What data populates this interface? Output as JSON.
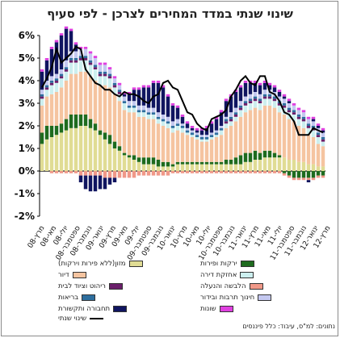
{
  "title": "שינוי שנתי במדד המחירים לצרכן - לפי סעיף",
  "source": "נתונים: למ\"ס, עיבוד: כלל פיננסים",
  "chart_data": {
    "type": "bar",
    "stacked": true,
    "ylim": [
      -2,
      6
    ],
    "yticks": [
      "-2%",
      "-1%",
      "0%",
      "1%",
      "2%",
      "3%",
      "4%",
      "5%",
      "6%"
    ],
    "grid": false,
    "x_tick_labels": [
      "מרץ-08",
      "מאי-08",
      "יולי-08",
      "ספטמבר-08",
      "נובמבר-08",
      "ינואר-09",
      "מרץ-09",
      "מאי-09",
      "יולי-09",
      "ספטמבר-09",
      "נובמבר-09",
      "ינואר-10",
      "מרץ-10",
      "מאי-10",
      "יולי-10",
      "ספטמבר-10",
      "נובמבר-10",
      "ינואר-11",
      "מרץ-11",
      "מאי-11",
      "יולי-11",
      "ספטמבר-11",
      "נובמבר-11",
      "ינואר-12",
      "מרץ-12"
    ],
    "series": [
      {
        "name": "מזון(ללא פירות וירקות)",
        "color": "#e0dc94",
        "values": [
          1.2,
          1.4,
          1.5,
          1.6,
          1.7,
          1.8,
          1.9,
          1.9,
          2.0,
          2.0,
          1.9,
          1.8,
          1.6,
          1.4,
          1.2,
          1.0,
          0.9,
          0.7,
          0.6,
          0.5,
          0.4,
          0.3,
          0.3,
          0.3,
          0.2,
          0.2,
          0.2,
          0.2,
          0.3,
          0.3,
          0.3,
          0.3,
          0.3,
          0.3,
          0.3,
          0.3,
          0.3,
          0.3,
          0.3,
          0.3,
          0.3,
          0.3,
          0.4,
          0.4,
          0.5,
          0.5,
          0.6,
          0.6,
          0.6,
          0.6,
          0.6,
          0.5,
          0.5,
          0.4,
          0.4,
          0.3,
          0.3,
          0.2,
          0.2
        ]
      },
      {
        "name": "ירקות ופירות",
        "color": "#1e6b1e",
        "values": [
          0.5,
          0.6,
          0.5,
          0.4,
          0.4,
          0.5,
          0.6,
          0.6,
          0.5,
          0.5,
          0.4,
          0.3,
          0.2,
          0.3,
          0.4,
          0.3,
          0.2,
          0.1,
          0.1,
          0.2,
          0.2,
          0.3,
          0.3,
          0.3,
          0.3,
          0.2,
          0.2,
          0.1,
          0.1,
          0.1,
          0.1,
          0.1,
          0.1,
          0.1,
          0.1,
          0.1,
          0.1,
          0.1,
          0.2,
          0.2,
          0.3,
          0.4,
          0.4,
          0.4,
          0.4,
          0.3,
          0.3,
          0.3,
          0.2,
          0.1,
          -0.1,
          -0.2,
          -0.3,
          -0.3,
          -0.3,
          -0.3,
          -0.3,
          -0.2,
          -0.2
        ]
      },
      {
        "name": "דיור",
        "color": "#f5c4a0",
        "values": [
          1.2,
          1.3,
          1.4,
          1.5,
          1.6,
          1.7,
          1.8,
          1.8,
          1.9,
          1.9,
          1.9,
          1.9,
          2.0,
          2.1,
          2.1,
          2.1,
          2.0,
          1.9,
          1.9,
          1.9,
          1.8,
          1.8,
          1.7,
          1.7,
          1.6,
          1.6,
          1.5,
          1.4,
          1.4,
          1.3,
          1.2,
          1.1,
          1.0,
          0.9,
          0.9,
          1.0,
          1.1,
          1.2,
          1.4,
          1.5,
          1.6,
          1.7,
          1.8,
          1.9,
          1.9,
          1.9,
          2.0,
          2.0,
          2.0,
          1.9,
          1.9,
          1.8,
          1.7,
          1.6,
          1.5,
          1.3,
          1.2,
          1.0,
          0.9
        ]
      },
      {
        "name": "אחזקת דירה",
        "color": "#ccefef",
        "values": [
          0.3,
          0.3,
          0.4,
          0.4,
          0.4,
          0.4,
          0.5,
          0.5,
          0.5,
          0.5,
          0.5,
          0.5,
          0.4,
          0.4,
          0.4,
          0.3,
          0.3,
          0.3,
          0.2,
          0.2,
          0.2,
          0.2,
          0.2,
          0.2,
          0.2,
          0.2,
          0.2,
          0.2,
          0.2,
          0.2,
          0.1,
          0.1,
          0.1,
          0.1,
          0.1,
          0.1,
          0.1,
          0.2,
          0.2,
          0.2,
          0.2,
          0.3,
          0.3,
          0.3,
          0.3,
          0.3,
          0.3,
          0.3,
          0.3,
          0.3,
          0.3,
          0.3,
          0.3,
          0.3,
          0.3,
          0.3,
          0.3,
          0.3,
          0.2
        ]
      },
      {
        "name": "ריהוט וציוד לבית",
        "color": "#6b1f6b",
        "values": [
          0.1,
          0.1,
          0.1,
          0.1,
          0.1,
          0.1,
          0.1,
          0.1,
          0.1,
          0.1,
          0.1,
          0.1,
          0.1,
          0.1,
          0.1,
          0.1,
          0.1,
          0.0,
          0.0,
          0.0,
          0.0,
          0.0,
          0.0,
          0.0,
          0.0,
          0.0,
          0.0,
          0.0,
          0.0,
          0.0,
          0.0,
          0.0,
          0.0,
          0.0,
          0.0,
          0.0,
          0.0,
          0.0,
          0.1,
          0.1,
          0.1,
          0.1,
          0.1,
          0.1,
          0.1,
          0.1,
          0.1,
          0.1,
          0.1,
          0.1,
          0.1,
          0.1,
          0.1,
          0.1,
          0.1,
          0.1,
          0.1,
          0.1,
          0.1
        ]
      },
      {
        "name": "הלבשה והנעלה",
        "color": "#f09888",
        "values": [
          0.0,
          0.0,
          -0.1,
          -0.1,
          -0.1,
          -0.1,
          -0.1,
          -0.1,
          -0.2,
          -0.2,
          -0.2,
          -0.2,
          -0.2,
          -0.3,
          -0.3,
          -0.3,
          -0.3,
          -0.3,
          -0.3,
          -0.3,
          -0.2,
          -0.2,
          -0.2,
          -0.2,
          -0.2,
          -0.2,
          -0.2,
          -0.1,
          -0.1,
          -0.1,
          -0.1,
          -0.1,
          -0.1,
          -0.1,
          -0.1,
          -0.1,
          -0.1,
          -0.1,
          -0.1,
          -0.1,
          -0.1,
          -0.1,
          -0.1,
          -0.1,
          -0.1,
          -0.1,
          -0.1,
          -0.1,
          -0.1,
          -0.1,
          -0.1,
          -0.1,
          -0.1,
          -0.1,
          -0.1,
          -0.1,
          -0.1,
          -0.1,
          -0.1
        ]
      },
      {
        "name": "בריאות",
        "color": "#2e6e9e",
        "values": [
          0.1,
          0.1,
          0.1,
          0.1,
          0.1,
          0.1,
          0.1,
          0.1,
          0.1,
          0.1,
          0.1,
          0.1,
          0.1,
          0.1,
          0.1,
          0.1,
          0.1,
          0.1,
          0.1,
          0.1,
          0.1,
          0.1,
          0.1,
          0.1,
          0.1,
          0.1,
          0.1,
          0.1,
          0.1,
          0.1,
          0.1,
          0.1,
          0.1,
          0.1,
          0.1,
          0.1,
          0.1,
          0.1,
          0.1,
          0.1,
          0.1,
          0.1,
          0.1,
          0.1,
          0.1,
          0.1,
          0.1,
          0.1,
          0.1,
          0.1,
          0.1,
          0.1,
          0.1,
          0.1,
          0.1,
          0.1,
          0.1,
          0.1,
          0.1
        ]
      },
      {
        "name": "חינוך תרבות ובידור",
        "color": "#c4c8f0",
        "values": [
          0.2,
          0.2,
          0.2,
          0.2,
          0.2,
          0.3,
          0.3,
          0.3,
          0.3,
          0.3,
          0.3,
          0.3,
          0.3,
          0.3,
          0.2,
          0.2,
          0.2,
          0.2,
          0.2,
          0.2,
          0.2,
          0.2,
          0.2,
          0.2,
          0.2,
          0.2,
          0.2,
          0.2,
          0.2,
          0.1,
          0.1,
          0.1,
          0.1,
          0.1,
          0.1,
          0.1,
          0.1,
          0.1,
          0.1,
          0.2,
          0.2,
          0.2,
          0.2,
          0.2,
          0.2,
          0.2,
          0.2,
          0.2,
          0.2,
          0.2,
          0.2,
          0.2,
          0.2,
          0.2,
          0.2,
          0.2,
          0.2,
          0.2,
          0.2
        ]
      },
      {
        "name": "תחבורה ותקשורת",
        "color": "#101560",
        "values": [
          0.8,
          0.9,
          1.2,
          1.4,
          1.5,
          1.4,
          0.9,
          0.3,
          -0.3,
          -0.6,
          -0.7,
          -0.7,
          -0.6,
          -0.5,
          -0.3,
          -0.2,
          0.0,
          0.1,
          0.3,
          0.5,
          0.7,
          0.8,
          0.9,
          1.1,
          1.3,
          1.2,
          0.9,
          0.7,
          0.5,
          0.3,
          0.2,
          0.1,
          0.1,
          0.2,
          0.3,
          0.4,
          0.5,
          0.6,
          0.7,
          0.7,
          0.7,
          0.6,
          0.6,
          0.5,
          0.4,
          0.4,
          0.3,
          0.2,
          0.2,
          0.2,
          0.1,
          0.1,
          0.0,
          0.0,
          0.0,
          -0.1,
          0.1,
          0.1,
          0.1
        ]
      },
      {
        "name": "שונות",
        "color": "#e040e0",
        "values": [
          0.1,
          0.1,
          0.1,
          0.1,
          0.1,
          0.1,
          0.1,
          0.1,
          0.1,
          0.1,
          0.1,
          0.1,
          0.1,
          0.1,
          0.1,
          0.1,
          0.1,
          0.1,
          0.1,
          0.1,
          0.1,
          0.1,
          0.1,
          0.1,
          0.1,
          0.1,
          0.1,
          0.1,
          0.1,
          0.1,
          0.1,
          0.1,
          0.1,
          0.1,
          0.1,
          0.1,
          0.1,
          0.1,
          0.1,
          0.1,
          0.1,
          0.1,
          0.1,
          0.1,
          0.1,
          0.1,
          0.1,
          0.1,
          0.1,
          0.1,
          0.1,
          0.1,
          0.1,
          0.1,
          0.1,
          0.1,
          0.1,
          0.1,
          0.1
        ]
      }
    ],
    "line": {
      "name": "שינוי שנתי",
      "color": "#000000",
      "values": [
        3.7,
        4.1,
        4.6,
        5.4,
        4.8,
        5.0,
        5.2,
        5.5,
        5.4,
        4.5,
        4.2,
        3.9,
        3.8,
        3.6,
        3.6,
        3.4,
        3.3,
        3.5,
        3.4,
        3.4,
        3.3,
        3.1,
        3.0,
        3.3,
        3.4,
        3.9,
        4.0,
        3.7,
        3.6,
        3.1,
        2.6,
        2.5,
        2.1,
        1.9,
        1.8,
        2.3,
        2.4,
        2.5,
        2.7,
        3.3,
        3.6,
        4.0,
        4.2,
        3.9,
        3.8,
        4.2,
        4.2,
        3.5,
        3.4,
        3.1,
        2.6,
        2.5,
        2.2,
        1.6,
        1.6,
        1.6,
        1.9,
        1.8,
        1.7
      ]
    }
  }
}
